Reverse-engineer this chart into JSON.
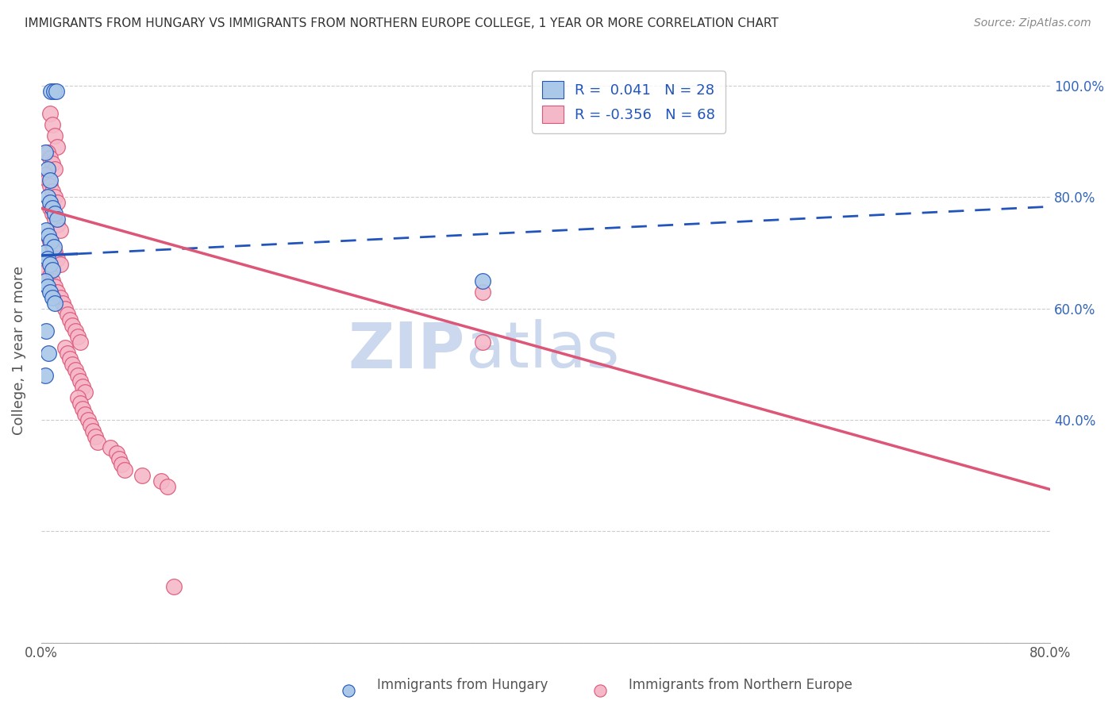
{
  "title": "IMMIGRANTS FROM HUNGARY VS IMMIGRANTS FROM NORTHERN EUROPE COLLEGE, 1 YEAR OR MORE CORRELATION CHART",
  "source": "Source: ZipAtlas.com",
  "ylabel": "College, 1 year or more",
  "xlim": [
    0.0,
    0.8
  ],
  "ylim": [
    0.0,
    1.05
  ],
  "xticks": [
    0.0,
    0.1,
    0.2,
    0.3,
    0.4,
    0.5,
    0.6,
    0.7,
    0.8
  ],
  "xticklabels": [
    "0.0%",
    "",
    "",
    "",
    "",
    "",
    "",
    "",
    "80.0%"
  ],
  "yticks_right": [
    0.4,
    0.6,
    0.8,
    1.0
  ],
  "ytick_labels_right": [
    "40.0%",
    "60.0%",
    "80.0%",
    "100.0%"
  ],
  "blue_R": 0.041,
  "blue_N": 28,
  "pink_R": -0.356,
  "pink_N": 68,
  "legend_label_blue": "Immigrants from Hungary",
  "legend_label_pink": "Immigrants from Northern Europe",
  "blue_scatter_x": [
    0.008,
    0.01,
    0.012,
    0.003,
    0.005,
    0.007,
    0.005,
    0.007,
    0.009,
    0.011,
    0.013,
    0.004,
    0.006,
    0.008,
    0.01,
    0.003,
    0.005,
    0.007,
    0.009,
    0.003,
    0.005,
    0.007,
    0.009,
    0.011,
    0.004,
    0.006,
    0.35,
    0.003
  ],
  "blue_scatter_y": [
    0.99,
    0.99,
    0.99,
    0.88,
    0.85,
    0.83,
    0.8,
    0.79,
    0.78,
    0.77,
    0.76,
    0.74,
    0.73,
    0.72,
    0.71,
    0.7,
    0.69,
    0.68,
    0.67,
    0.65,
    0.64,
    0.63,
    0.62,
    0.61,
    0.56,
    0.52,
    0.65,
    0.48
  ],
  "pink_scatter_x": [
    0.007,
    0.009,
    0.011,
    0.013,
    0.005,
    0.007,
    0.009,
    0.011,
    0.003,
    0.005,
    0.007,
    0.009,
    0.011,
    0.013,
    0.007,
    0.009,
    0.011,
    0.013,
    0.015,
    0.005,
    0.007,
    0.009,
    0.011,
    0.013,
    0.015,
    0.005,
    0.007,
    0.009,
    0.011,
    0.013,
    0.015,
    0.017,
    0.019,
    0.021,
    0.023,
    0.025,
    0.027,
    0.029,
    0.031,
    0.019,
    0.021,
    0.023,
    0.025,
    0.027,
    0.029,
    0.031,
    0.033,
    0.035,
    0.029,
    0.031,
    0.033,
    0.035,
    0.037,
    0.039,
    0.041,
    0.043,
    0.045,
    0.055,
    0.06,
    0.062,
    0.064,
    0.066,
    0.35,
    0.08,
    0.095,
    0.1,
    0.105,
    0.35
  ],
  "pink_scatter_y": [
    0.95,
    0.93,
    0.91,
    0.89,
    0.88,
    0.87,
    0.86,
    0.85,
    0.84,
    0.83,
    0.82,
    0.81,
    0.8,
    0.79,
    0.78,
    0.77,
    0.76,
    0.75,
    0.74,
    0.73,
    0.72,
    0.71,
    0.7,
    0.69,
    0.68,
    0.67,
    0.66,
    0.65,
    0.64,
    0.63,
    0.62,
    0.61,
    0.6,
    0.59,
    0.58,
    0.57,
    0.56,
    0.55,
    0.54,
    0.53,
    0.52,
    0.51,
    0.5,
    0.49,
    0.48,
    0.47,
    0.46,
    0.45,
    0.44,
    0.43,
    0.42,
    0.41,
    0.4,
    0.39,
    0.38,
    0.37,
    0.36,
    0.35,
    0.34,
    0.33,
    0.32,
    0.31,
    0.63,
    0.3,
    0.29,
    0.28,
    0.1,
    0.54
  ],
  "blue_line_y_start": 0.695,
  "blue_line_y_end": 0.783,
  "blue_line_solid_end": 0.028,
  "pink_line_y_start": 0.78,
  "pink_line_y_end": 0.275,
  "blue_color": "#aac8e8",
  "pink_color": "#f5b8c8",
  "blue_line_color": "#2255bb",
  "pink_line_color": "#dd5577",
  "title_color": "#333333",
  "source_color": "#888888",
  "axis_label_color": "#555555",
  "right_tick_color": "#3366bb",
  "grid_color": "#cccccc",
  "watermark_zip": "ZIP",
  "watermark_atlas": "atlas",
  "watermark_color": "#ccd8ee"
}
